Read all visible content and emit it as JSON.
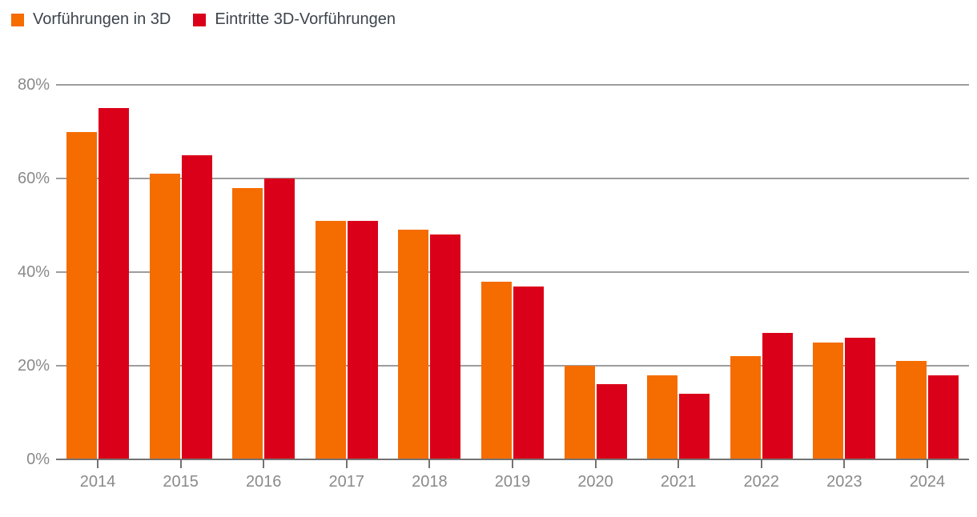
{
  "colors": {
    "series_orange": "#f56c00",
    "series_red": "#db0019",
    "gridline": "#9d9d9d",
    "axis": "#737373",
    "axis_label_text": "#8a8a8a",
    "legend_text": "#3d444c",
    "background": "#ffffff"
  },
  "legend": {
    "items": [
      {
        "label": "Vorführungen in 3D",
        "color": "#f56c00"
      },
      {
        "label": "Eintritte 3D-Vorführungen",
        "color": "#db0019"
      }
    ]
  },
  "chart_data": {
    "type": "bar",
    "title": "",
    "xlabel": "",
    "ylabel": "",
    "categories": [
      "2014",
      "2015",
      "2016",
      "2017",
      "2018",
      "2019",
      "2020",
      "2021",
      "2022",
      "2023",
      "2024"
    ],
    "series": [
      {
        "name": "Vorführungen in 3D",
        "color": "#f56c00",
        "values": [
          70,
          61,
          58,
          51,
          49,
          38,
          20,
          18,
          22,
          25,
          21
        ]
      },
      {
        "name": "Eintritte 3D-Vorführungen",
        "color": "#db0019",
        "values": [
          75,
          65,
          60,
          51,
          48,
          37,
          16,
          14,
          27,
          26,
          18
        ]
      }
    ],
    "value_unit": "%",
    "ylim": [
      0,
      80
    ],
    "y_tick_labels": [
      "80%",
      "60%",
      "40%",
      "20%",
      "0%"
    ],
    "y_tick_values": [
      80,
      60,
      40,
      20,
      0
    ],
    "grid": "horizontal",
    "legend_position": "top-left"
  }
}
